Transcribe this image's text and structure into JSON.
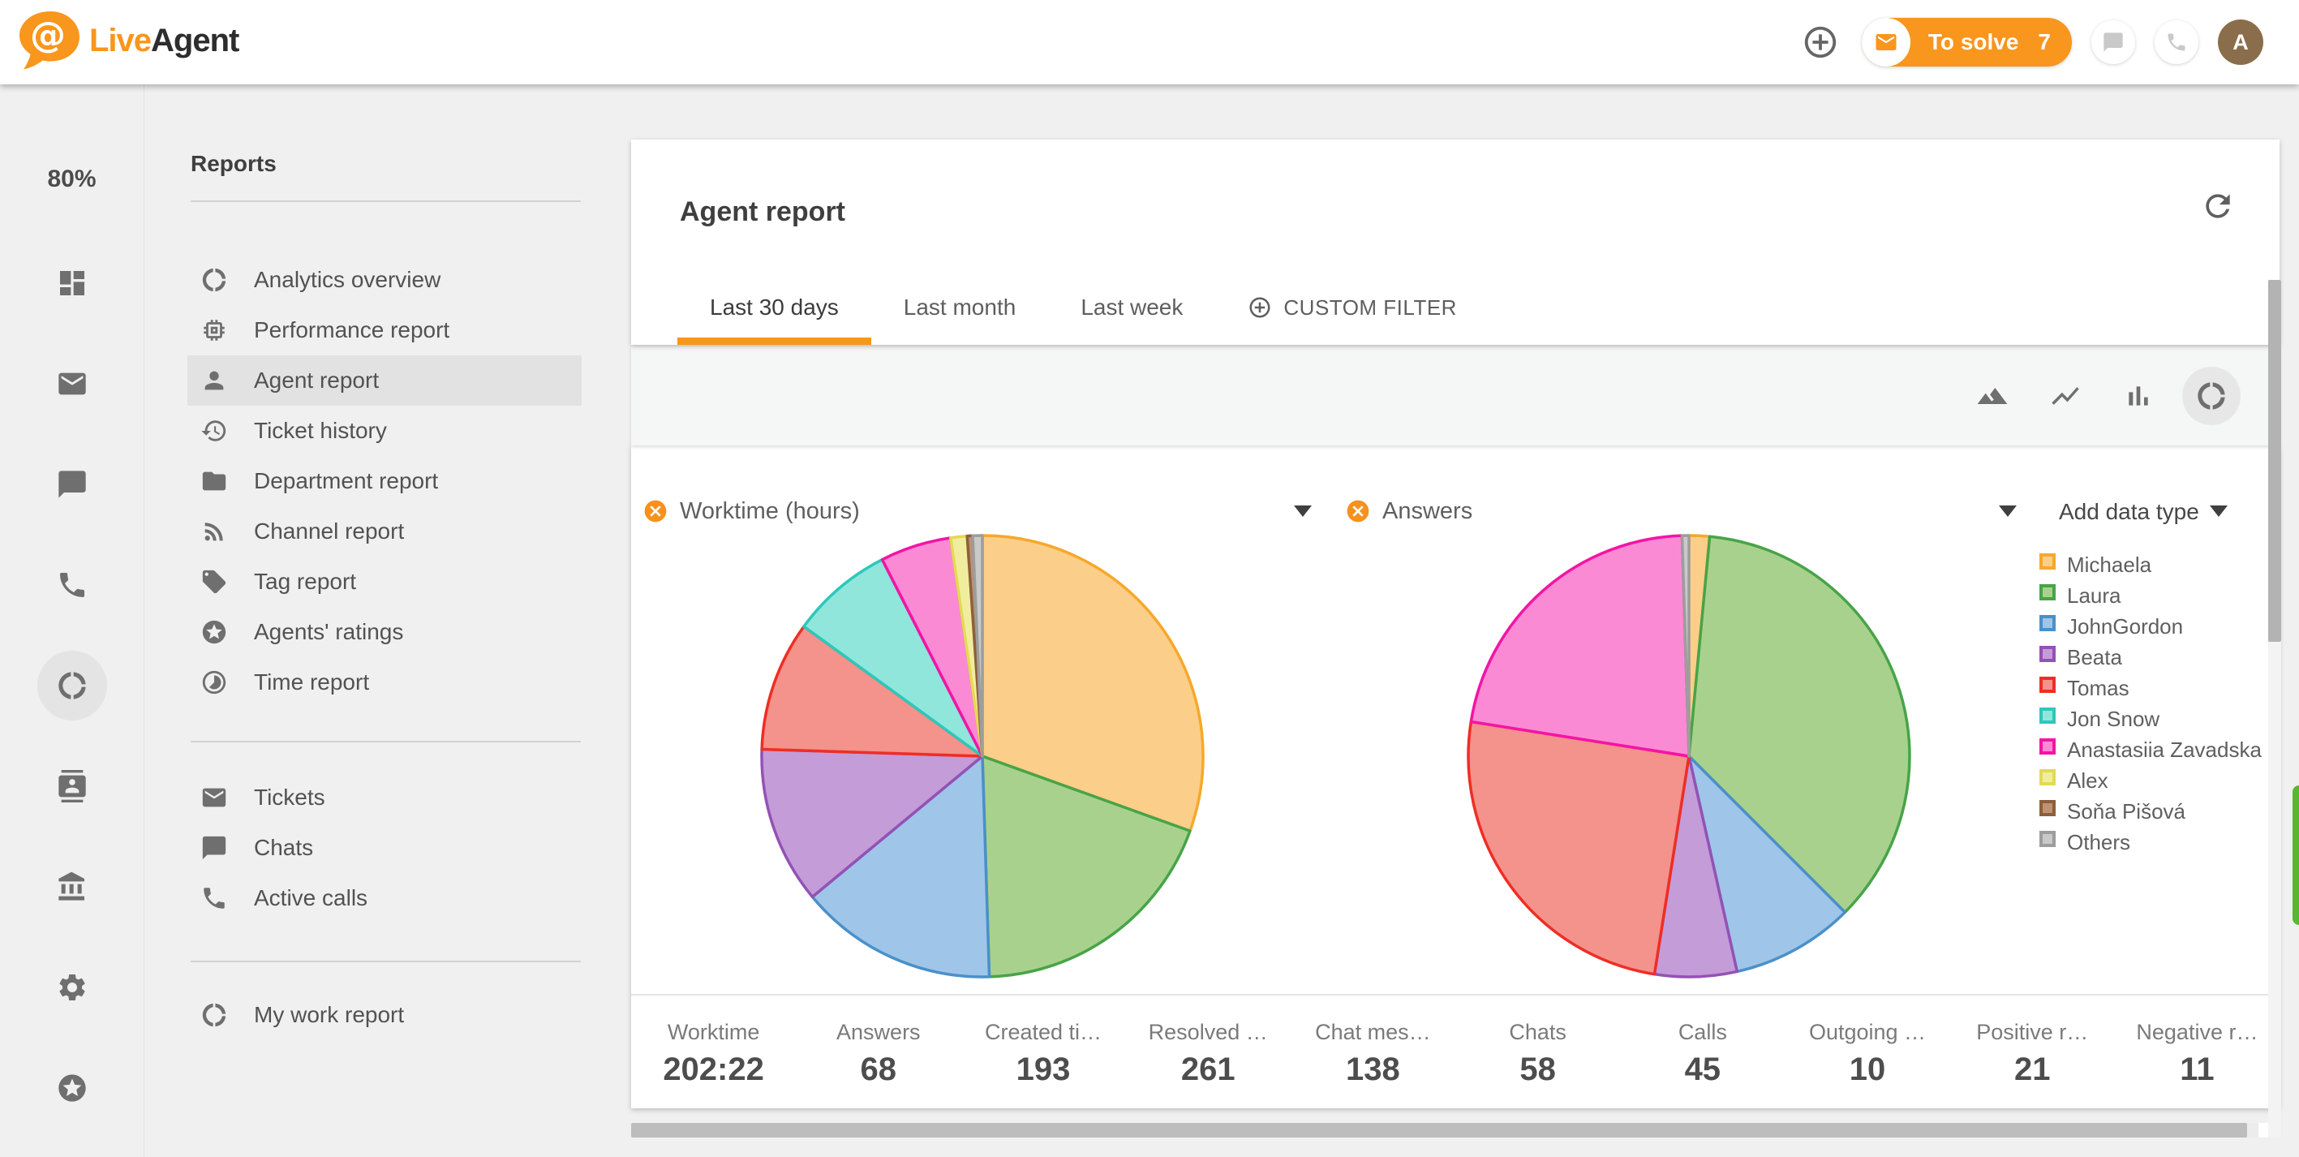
{
  "topbar": {
    "brand_live": "Live",
    "brand_agent": "Agent",
    "to_solve_label": "To solve",
    "to_solve_count": "7",
    "avatar_letter": "A"
  },
  "rail": {
    "zoom_level": "80%",
    "icons": [
      {
        "icon": "dashboard"
      },
      {
        "icon": "mail"
      },
      {
        "icon": "chat"
      },
      {
        "icon": "phone"
      },
      {
        "icon": "donut",
        "active": true
      },
      {
        "icon": "contacts"
      },
      {
        "icon": "bank"
      },
      {
        "icon": "settings"
      },
      {
        "icon": "ratings"
      }
    ]
  },
  "sidebar": {
    "title": "Reports",
    "primary": [
      {
        "label": "Analytics overview",
        "icon": "donut"
      },
      {
        "label": "Performance report",
        "icon": "memory"
      },
      {
        "label": "Agent report",
        "icon": "person",
        "selected": true
      },
      {
        "label": "Ticket history",
        "icon": "history"
      },
      {
        "label": "Department report",
        "icon": "folder"
      },
      {
        "label": "Channel report",
        "icon": "rss"
      },
      {
        "label": "Tag report",
        "icon": "tag"
      },
      {
        "label": "Agents' ratings",
        "icon": "ratings"
      },
      {
        "label": "Time report",
        "icon": "timelapse"
      }
    ],
    "secondary": [
      {
        "label": "Tickets",
        "icon": "mail"
      },
      {
        "label": "Chats",
        "icon": "chat"
      },
      {
        "label": "Active calls",
        "icon": "phone"
      }
    ],
    "footer": [
      {
        "label": "My work report",
        "icon": "donut"
      }
    ]
  },
  "report": {
    "title": "Agent report",
    "tabs": [
      {
        "label": "Last 30 days",
        "active": true
      },
      {
        "label": "Last month",
        "active": false
      },
      {
        "label": "Last week",
        "active": false
      }
    ],
    "custom_filter": "CUSTOM FILTER",
    "add_data_type": "Add data type",
    "chart_tools": [
      {
        "icon": "area-chart",
        "active": false
      },
      {
        "icon": "line-chart",
        "active": false
      },
      {
        "icon": "bar-chart",
        "active": false
      },
      {
        "icon": "pie-chart",
        "active": true
      }
    ]
  },
  "legend": {
    "entries": [
      {
        "name": "Michaela",
        "fill": "#fbce8a",
        "stroke": "#f7a829"
      },
      {
        "name": "Laura",
        "fill": "#a9d18e",
        "stroke": "#47a447"
      },
      {
        "name": "JohnGordon",
        "fill": "#9fc5e8",
        "stroke": "#4a90c9"
      },
      {
        "name": "Beata",
        "fill": "#c49cd8",
        "stroke": "#9352b5"
      },
      {
        "name": "Tomas",
        "fill": "#f4928c",
        "stroke": "#ef2e24"
      },
      {
        "name": "Jon Snow",
        "fill": "#90e6db",
        "stroke": "#2cc8bb"
      },
      {
        "name": "Anastasiia Zavadska",
        "fill": "#fb8ad4",
        "stroke": "#f414a5"
      },
      {
        "name": "Alex",
        "fill": "#f1ed9e",
        "stroke": "#e4da52"
      },
      {
        "name": "Soňa Pišová",
        "fill": "#bf9274",
        "stroke": "#8d5f3d"
      },
      {
        "name": "Others",
        "fill": "#c9c9c9",
        "stroke": "#9d9d9d"
      }
    ]
  },
  "chart_data": [
    {
      "type": "pie",
      "title": "Worktime (hours)",
      "total_label": "202:22",
      "unit": "percent_share",
      "categories": [
        "Michaela",
        "Laura",
        "JohnGordon",
        "Beata",
        "Tomas",
        "Jon Snow",
        "Anastasiia Zavadska",
        "Alex",
        "Soňa Pišová",
        "Others"
      ],
      "values": [
        30.5,
        19.0,
        14.5,
        11.5,
        9.5,
        7.5,
        5.2,
        1.2,
        0.4,
        0.7
      ],
      "start_angle_deg": 0,
      "direction": "clockwise",
      "legend_position": "right"
    },
    {
      "type": "pie",
      "title": "Answers",
      "total_label": "68",
      "unit": "percent_share",
      "categories": [
        "Michaela",
        "Laura",
        "JohnGordon",
        "Beata",
        "Tomas",
        "Jon Snow",
        "Anastasiia Zavadska",
        "Alex",
        "Soňa Pišová",
        "Others"
      ],
      "values": [
        1.5,
        36.0,
        9.0,
        6.0,
        25.0,
        0,
        22.0,
        0,
        0,
        0.5
      ],
      "start_angle_deg": 0,
      "direction": "clockwise",
      "legend_position": "right"
    }
  ],
  "stats": [
    {
      "label": "Worktime",
      "value": "202:22"
    },
    {
      "label": "Answers",
      "value": "68"
    },
    {
      "label": "Created ti…",
      "value": "193"
    },
    {
      "label": "Resolved …",
      "value": "261"
    },
    {
      "label": "Chat mes…",
      "value": "138"
    },
    {
      "label": "Chats",
      "value": "58"
    },
    {
      "label": "Calls",
      "value": "45"
    },
    {
      "label": "Outgoing …",
      "value": "10"
    },
    {
      "label": "Positive r…",
      "value": "21"
    },
    {
      "label": "Negative r…",
      "value": "11"
    }
  ],
  "colors": {
    "accent": "#f8961d",
    "sidebar_selected_bg": "#e2e2e2",
    "icon_gray": "#6f6f6f",
    "avatar_bg": "#8a6d4a",
    "chat_sliver_green": "#57b72e"
  }
}
